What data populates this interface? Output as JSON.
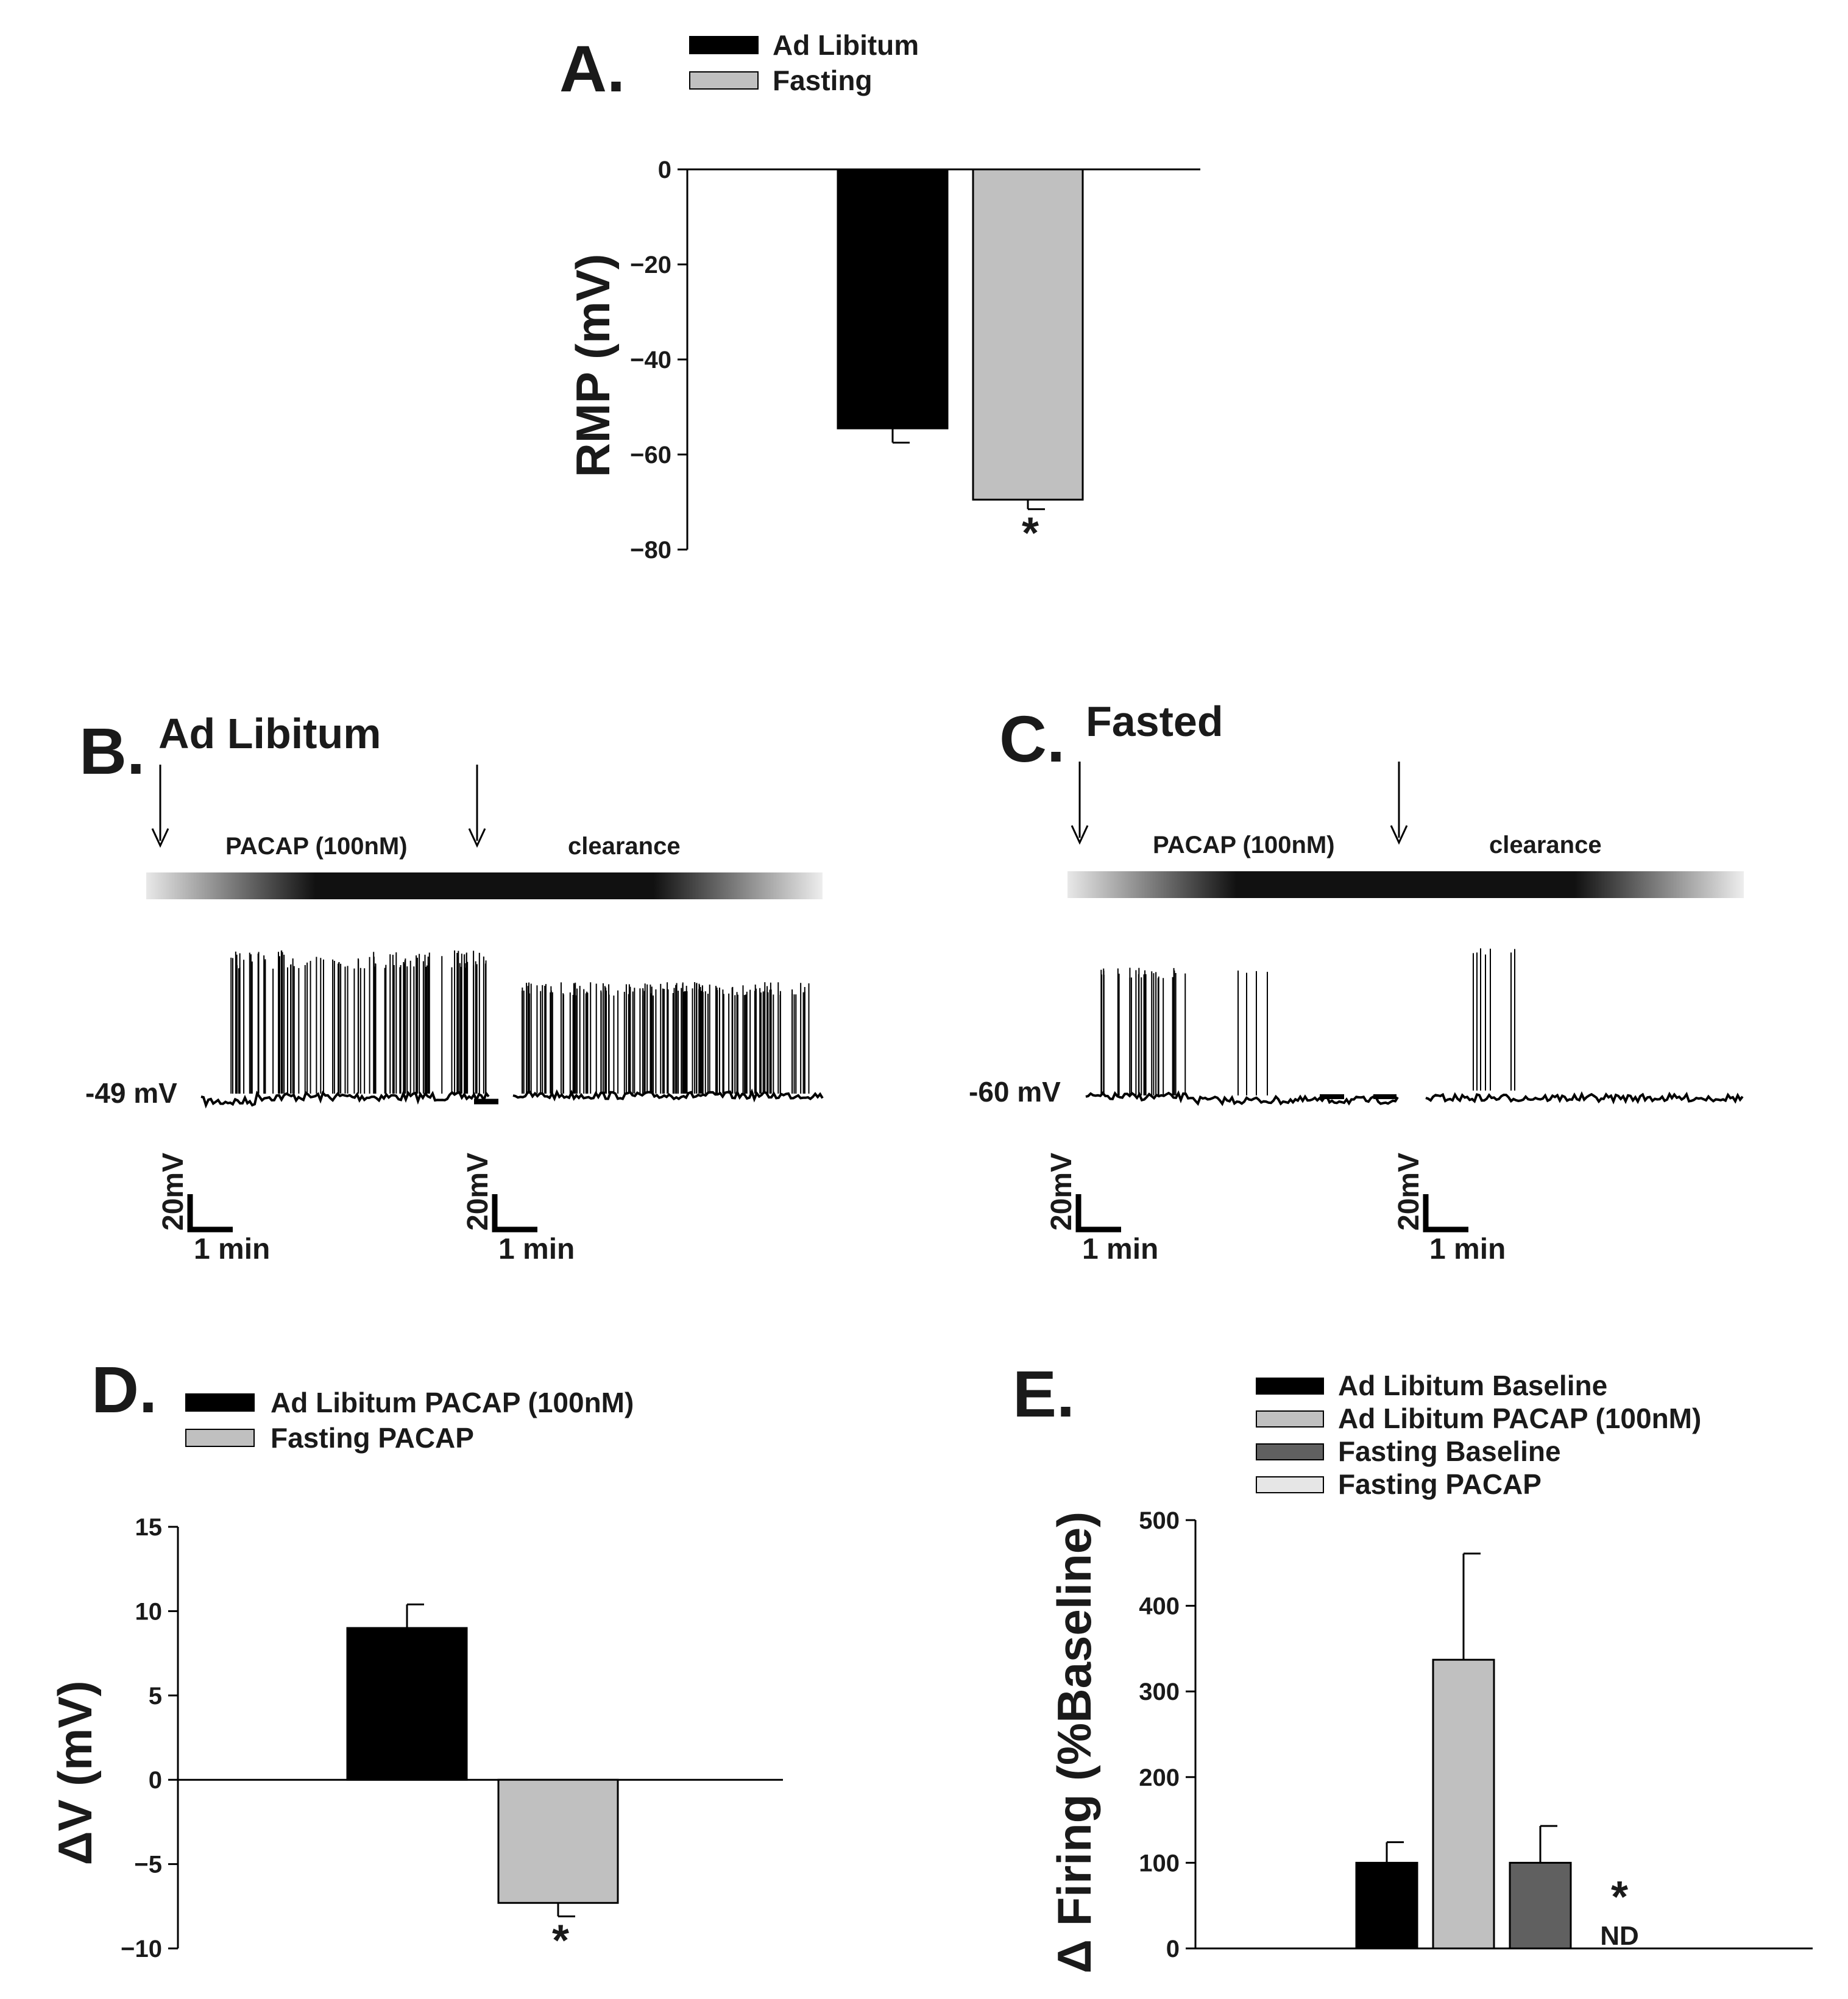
{
  "panels": {
    "A": {
      "label": "A."
    },
    "B": {
      "label": "B.",
      "title": "Ad Libitum"
    },
    "C": {
      "label": "C.",
      "title": "Fasted"
    },
    "D": {
      "label": "D."
    },
    "E": {
      "label": "E."
    }
  },
  "chart_data": [
    {
      "id": "A",
      "type": "bar",
      "ylabel": "RMP (mV)",
      "ylim": [
        -80,
        0
      ],
      "yticks": [
        0,
        -20,
        -40,
        -60,
        -80
      ],
      "legend": [
        "Ad Libitum",
        "Fasting"
      ],
      "legend_placement": "top",
      "series": [
        {
          "name": "Ad Libitum",
          "value": -54.5,
          "error": 3,
          "color": "#000000"
        },
        {
          "name": "Fasting",
          "value": -69.5,
          "error": 2,
          "color": "#c0c0c0"
        }
      ],
      "annotations": [
        {
          "text": "*",
          "series": "Fasting"
        }
      ]
    },
    {
      "id": "B",
      "type": "line",
      "title": "Ad Libitum",
      "trace_label": "PACAP (100nM)",
      "clearance_label": "clearance",
      "baseline_label": "-49 mV",
      "scale_bars": [
        {
          "v": "20mV",
          "t": "1 min"
        },
        {
          "v": "20mV",
          "t": "1 min"
        }
      ]
    },
    {
      "id": "C",
      "type": "line",
      "title": "Fasted",
      "trace_label": "PACAP (100nM)",
      "clearance_label": "clearance",
      "baseline_label": "-60 mV",
      "scale_bars": [
        {
          "v": "20mV",
          "t": "1 min"
        },
        {
          "v": "20mV",
          "t": "1 min"
        }
      ]
    },
    {
      "id": "D",
      "type": "bar",
      "ylabel": "ΔV (mV)",
      "ylim": [
        -10,
        15
      ],
      "yticks": [
        15,
        10,
        5,
        0,
        -5,
        -10
      ],
      "legend": [
        "Ad Libitum PACAP (100nM)",
        "Fasting PACAP"
      ],
      "legend_placement": "top",
      "series": [
        {
          "name": "Ad Libitum PACAP (100nM)",
          "value": 9,
          "error": 1.4,
          "color": "#000000"
        },
        {
          "name": "Fasting PACAP",
          "value": -7.3,
          "error": 0.8,
          "color": "#c0c0c0"
        }
      ],
      "annotations": [
        {
          "text": "*",
          "series": "Fasting PACAP"
        }
      ]
    },
    {
      "id": "E",
      "type": "bar",
      "ylabel": "Δ Firing (%Baseline)",
      "ylim": [
        0,
        500
      ],
      "yticks": [
        500,
        400,
        300,
        200,
        100,
        0
      ],
      "legend": [
        "Ad Libitum Baseline",
        "Ad Libitum PACAP (100nM)",
        "Fasting Baseline",
        "Fasting PACAP"
      ],
      "legend_placement": "top",
      "series": [
        {
          "name": "Ad Libitum Baseline",
          "value": 100,
          "error": 24,
          "color": "#000000"
        },
        {
          "name": "Ad Libitum PACAP (100nM)",
          "value": 337,
          "error": 124,
          "color": "#c0c0c0"
        },
        {
          "name": "Fasting Baseline",
          "value": 100,
          "error": 43,
          "color": "#606060"
        },
        {
          "name": "Fasting PACAP",
          "value": null,
          "color": "#e6e6e6"
        }
      ],
      "annotations": [
        {
          "text": "*",
          "series": "Fasting PACAP"
        },
        {
          "text": "ND",
          "series": "Fasting PACAP"
        }
      ]
    }
  ]
}
